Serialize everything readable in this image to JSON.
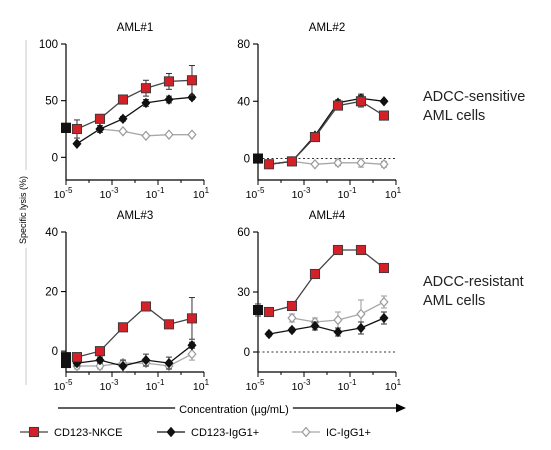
{
  "chart_data": [
    {
      "title": "AML#1",
      "type": "line",
      "x_scale": "log10",
      "xlim": [
        1e-05,
        10
      ],
      "ylim": [
        -20,
        100
      ],
      "yticks": [
        0,
        50,
        100
      ],
      "x": [
        1e-05,
        3e-05,
        0.0003,
        0.003,
        0.03,
        0.3,
        3
      ],
      "series": [
        {
          "name": "CD123-NKCE",
          "values": [
            26,
            25,
            34,
            51,
            61,
            67,
            68
          ],
          "err": [
            0,
            8,
            3,
            3,
            7,
            7,
            13
          ]
        },
        {
          "name": "CD123-IgG1+",
          "values": [
            26,
            12,
            25,
            34,
            48,
            51,
            53
          ],
          "err": [
            0,
            1,
            3,
            2,
            3,
            3,
            2
          ]
        },
        {
          "name": "IC-IgG1+",
          "values": [
            26,
            null,
            25,
            23,
            19,
            20,
            20
          ],
          "err": [
            0,
            0,
            1,
            1,
            1,
            1,
            1
          ]
        }
      ]
    },
    {
      "title": "AML#2",
      "type": "line",
      "x_scale": "log10",
      "xlim": [
        1e-05,
        10
      ],
      "ylim": [
        -15,
        80
      ],
      "yticks": [
        0,
        40,
        80
      ],
      "zero_line": "dotted",
      "x": [
        1e-05,
        3e-05,
        0.0003,
        0.003,
        0.03,
        0.3,
        3
      ],
      "series": [
        {
          "name": "CD123-NKCE",
          "values": [
            0,
            -4,
            -2,
            15,
            37,
            40,
            30
          ],
          "err": [
            0,
            1,
            1,
            2,
            3,
            4,
            1
          ]
        },
        {
          "name": "CD123-IgG1+",
          "values": [
            0,
            -4,
            -2,
            16,
            39,
            42,
            40
          ],
          "err": [
            0,
            1,
            1,
            2,
            2,
            3,
            1
          ]
        },
        {
          "name": "IC-IgG1+",
          "values": [
            0,
            -4,
            -2,
            -4,
            -3,
            -3,
            -4
          ],
          "err": [
            0,
            1,
            1,
            1,
            2,
            3,
            2
          ]
        }
      ]
    },
    {
      "title": "AML#3",
      "type": "line",
      "x_scale": "log10",
      "xlim": [
        1e-05,
        10
      ],
      "ylim": [
        -7,
        40
      ],
      "yticks": [
        0,
        20,
        40
      ],
      "x": [
        1e-05,
        3e-05,
        0.0003,
        0.003,
        0.03,
        0.3,
        3
      ],
      "series": [
        {
          "name": "CD123-NKCE",
          "values": [
            -2,
            -2,
            0,
            8,
            15,
            9,
            11
          ],
          "err": [
            1,
            1,
            1,
            1,
            1,
            1,
            7
          ]
        },
        {
          "name": "CD123-IgG1+",
          "values": [
            -3,
            -4,
            -3,
            -5,
            -3,
            -4,
            2
          ],
          "err": [
            1,
            1,
            1,
            2,
            2,
            2,
            1
          ]
        },
        {
          "name": "IC-IgG1+",
          "values": [
            -4,
            -5,
            -5,
            -4,
            -4,
            -5,
            -1
          ],
          "err": [
            1,
            1,
            1,
            1,
            1,
            1,
            2
          ]
        }
      ]
    },
    {
      "title": "AML#4",
      "type": "line",
      "x_scale": "log10",
      "xlim": [
        1e-05,
        10
      ],
      "ylim": [
        -10,
        60
      ],
      "yticks": [
        0,
        30,
        60
      ],
      "zero_line": "dotted",
      "x": [
        1e-05,
        3e-05,
        0.0003,
        0.003,
        0.03,
        0.3,
        3
      ],
      "series": [
        {
          "name": "CD123-NKCE",
          "values": [
            21,
            20,
            23,
            39,
            51,
            51,
            42
          ],
          "err": [
            3,
            1,
            1,
            1,
            1,
            1,
            1
          ]
        },
        {
          "name": "CD123-IgG1+",
          "values": [
            21,
            9,
            11,
            13,
            10,
            12,
            17
          ],
          "err": [
            2,
            1,
            1,
            2,
            2,
            3,
            3
          ]
        },
        {
          "name": "IC-IgG1+",
          "values": [
            21,
            null,
            17,
            15,
            16,
            19,
            25
          ],
          "err": [
            2,
            0,
            2,
            2,
            4,
            7,
            3
          ]
        }
      ]
    }
  ],
  "ylabel": "Specific lysis (%)",
  "xlabel": "Concentration (µg/mL)",
  "x_tick_exponents": [
    "-5",
    "-3",
    "-1",
    "1"
  ],
  "x_tick_base": "10",
  "group_labels": {
    "top_line1": "ADCC-sensitive",
    "top_line2": "AML cells",
    "bottom_line1": "ADCC-resistant",
    "bottom_line2": "AML cells"
  },
  "legend": [
    {
      "name": "CD123-NKCE",
      "marker": "square",
      "color": "#d42027",
      "edge": "#3a3a3a",
      "line": "#444444"
    },
    {
      "name": "CD123-IgG1+",
      "marker": "diamond",
      "color": "#111111",
      "edge": "#111111",
      "line": "#111111"
    },
    {
      "name": "IC-IgG1+",
      "marker": "diamond-open",
      "color": "#ffffff",
      "edge": "#9a9a9a",
      "line": "#a8a8a8"
    }
  ]
}
